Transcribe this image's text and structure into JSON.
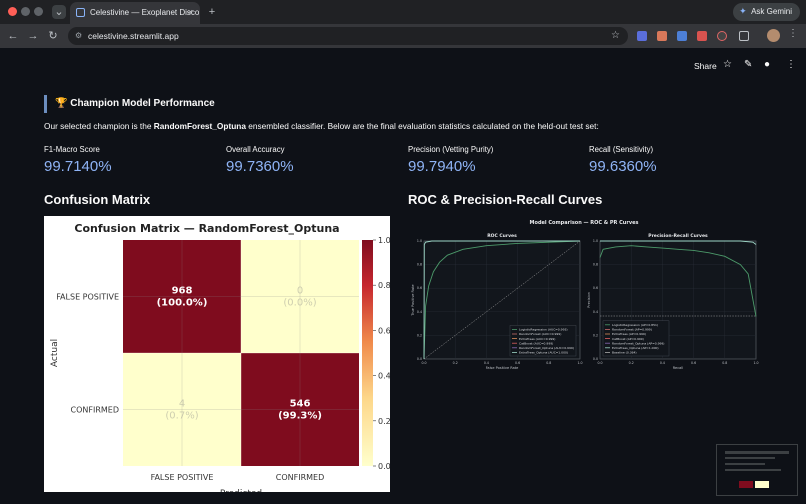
{
  "browser": {
    "tab_title": "Celestivine — Exoplanet Disco",
    "tab_close": "×",
    "new_tab": "+",
    "gemini_label": "Ask Gemini",
    "url": "celestivine.streamlit.app"
  },
  "app": {
    "share_label": "Share",
    "section_heading": "🏆 Champion Model Performance",
    "intro_prefix": "Our selected champion is the ",
    "intro_model": "RandomForest_Optuna",
    "intro_suffix": " ensembled classifier. Below are the final evaluation statistics calculated on the held-out test set:",
    "metrics": [
      {
        "label": "F1-Macro Score",
        "value": "99.7140%"
      },
      {
        "label": "Overall Accuracy",
        "value": "99.7360%"
      },
      {
        "label": "Precision (Vetting Purity)",
        "value": "99.7940%"
      },
      {
        "label": "Recall (Sensitivity)",
        "value": "99.6360%"
      }
    ],
    "cm_heading": "Confusion Matrix",
    "roc_heading": "ROC & Precision-Recall Curves"
  },
  "chart_data": [
    {
      "type": "heatmap",
      "title": "Confusion Matrix — RandomForest_Optuna",
      "xlabel": "Predicted",
      "ylabel": "Actual",
      "x_categories": [
        "FALSE POSITIVE",
        "CONFIRMED"
      ],
      "y_categories": [
        "FALSE POSITIVE",
        "CONFIRMED"
      ],
      "normalized_values": [
        [
          1.0,
          0.0
        ],
        [
          0.007,
          0.993
        ]
      ],
      "cell_labels": [
        [
          "968\n(100.0%)",
          "0\n(0.0%)"
        ],
        [
          "4\n(0.7%)",
          "546\n(99.3%)"
        ]
      ],
      "colorbar_ticks": [
        "0.0",
        "0.2",
        "0.4",
        "0.6",
        "0.8",
        "1.0"
      ],
      "colorbar_range": [
        0,
        1
      ],
      "colors": {
        "high": "#7f0c1e",
        "low": "#ffffcc"
      }
    },
    {
      "type": "line",
      "title": "Model Comparison — ROC & PR Curves",
      "panels": [
        {
          "title": "ROC Curves",
          "xlabel": "False Positive Rate",
          "ylabel": "True Positive Rate",
          "xlim": [
            0,
            1
          ],
          "ylim": [
            0,
            1
          ],
          "ticks": [
            "0.0",
            "0.2",
            "0.4",
            "0.6",
            "0.8",
            "1.0"
          ],
          "legend": [
            "LogisticRegression (AUC=0.993)",
            "RandomForest (AUC=0.999)",
            "ExtraTrees (AUC=0.999)",
            "CatBoost (AUC=0.999)",
            "RandomForest_Optuna (AUC=0.999)",
            "ExtraTrees_Optuna (AUC=1.000)"
          ],
          "legend_position": "lower-right",
          "series": [
            {
              "name": "LogisticRegression",
              "color": "#4c9a6a",
              "x": [
                0,
                0.01,
                0.03,
                0.06,
                0.1,
                0.15,
                0.25,
                0.4,
                0.6,
                1.0
              ],
              "y": [
                0,
                0.45,
                0.62,
                0.74,
                0.82,
                0.88,
                0.93,
                0.96,
                0.98,
                1.0
              ]
            },
            {
              "name": "ExtraTrees_Optuna",
              "color": "#9fd8c8",
              "x": [
                0,
                0.002,
                0.01,
                0.05,
                1.0
              ],
              "y": [
                0,
                0.97,
                0.99,
                1.0,
                1.0
              ]
            },
            {
              "name": "Chance",
              "color": "#aaaaaa",
              "x": [
                0,
                1
              ],
              "y": [
                0,
                1
              ]
            }
          ]
        },
        {
          "title": "Precision-Recall Curves",
          "xlabel": "Recall",
          "ylabel": "Precision",
          "xlim": [
            0,
            1
          ],
          "ylim": [
            0,
            1
          ],
          "ticks": [
            "0.0",
            "0.2",
            "0.4",
            "0.6",
            "0.8",
            "1.0"
          ],
          "legend": [
            "LogisticRegression (AP=0.851)",
            "RandomForest (AP=0.999)",
            "ExtraTrees (AP=0.999)",
            "CatBoost (AP=0.999)",
            "RandomForest_Optuna (AP=0.999)",
            "ExtraTrees_Optuna (AP=1.000)",
            "Baseline (0.364)"
          ],
          "legend_position": "lower-left",
          "series": [
            {
              "name": "LogisticRegression",
              "color": "#4c9a6a",
              "x": [
                0,
                0.02,
                0.1,
                0.2,
                0.3,
                0.4,
                0.5,
                0.6,
                0.7,
                0.8,
                0.9,
                0.95,
                1.0
              ],
              "y": [
                0.86,
                0.93,
                0.95,
                0.96,
                0.95,
                0.94,
                0.93,
                0.92,
                0.9,
                0.87,
                0.8,
                0.72,
                0.36
              ]
            },
            {
              "name": "ExtraTrees_Optuna",
              "color": "#9fd8c8",
              "x": [
                0,
                0.9,
                0.98,
                1.0
              ],
              "y": [
                1.0,
                1.0,
                0.99,
                0.97
              ]
            },
            {
              "name": "Baseline",
              "color": "#aaaaaa",
              "x": [
                0,
                1
              ],
              "y": [
                0.364,
                0.364
              ]
            }
          ]
        }
      ]
    }
  ]
}
